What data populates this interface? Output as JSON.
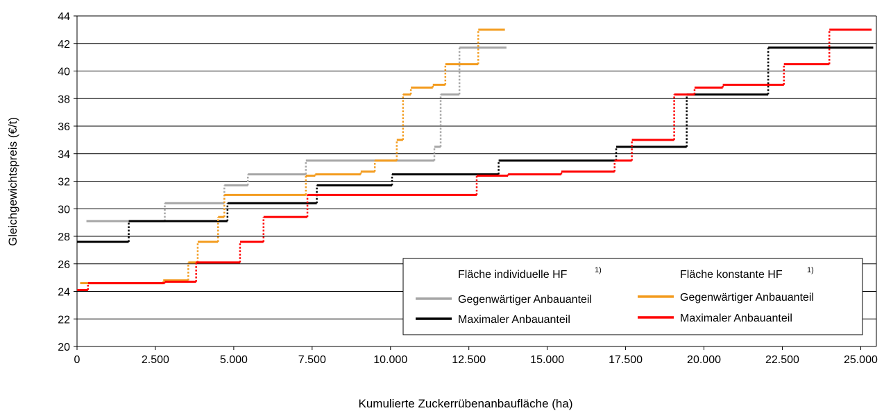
{
  "chart_data": {
    "type": "line",
    "step": true,
    "xlabel": "Kumulierte Zuckerrübenanbaufläche (ha)",
    "ylabel": "Gleichgewichtspreis (€/t)",
    "xlim": [
      0,
      25500
    ],
    "ylim": [
      20,
      44
    ],
    "x_ticks": [
      0,
      2500,
      5000,
      7500,
      10000,
      12500,
      15000,
      17500,
      20000,
      22500,
      25000
    ],
    "x_tick_labels": [
      "0",
      "2.500",
      "5.000",
      "7.500",
      "10.000",
      "12.500",
      "15.000",
      "17.500",
      "20.000",
      "22.500",
      "25.000"
    ],
    "y_ticks": [
      20,
      22,
      24,
      26,
      28,
      30,
      32,
      34,
      36,
      38,
      40,
      42,
      44
    ],
    "y_tick_labels": [
      "20",
      "22",
      "24",
      "26",
      "28",
      "30",
      "32",
      "34",
      "36",
      "38",
      "40",
      "42",
      "44"
    ],
    "grid": "horizontal",
    "legend": {
      "placement": "bottom-right",
      "group1_title": "Fläche individuelle HF",
      "group2_title": "Fläche konstante HF",
      "footnote_marker": "1)"
    },
    "series": [
      {
        "name": "Gegenwärtiger Anbauanteil",
        "group": "Fläche individuelle HF",
        "color": "#a6a6a6",
        "points": [
          [
            300,
            29.1
          ],
          [
            1650,
            29.1
          ],
          [
            2800,
            30.4
          ],
          [
            4700,
            31.7
          ],
          [
            5450,
            32.5
          ],
          [
            7300,
            33.5
          ],
          [
            11400,
            34.5
          ],
          [
            11600,
            38.3
          ],
          [
            12200,
            41.7
          ],
          [
            13700,
            41.7
          ]
        ]
      },
      {
        "name": "Maximaler Anbauanteil",
        "group": "Fläche individuelle HF",
        "color": "#000000",
        "points": [
          [
            0,
            27.6
          ],
          [
            1650,
            29.1
          ],
          [
            4800,
            30.4
          ],
          [
            7650,
            31.7
          ],
          [
            10050,
            32.5
          ],
          [
            13450,
            33.5
          ],
          [
            17200,
            34.5
          ],
          [
            19450,
            38.3
          ],
          [
            22050,
            41.7
          ],
          [
            25400,
            41.7
          ]
        ]
      },
      {
        "name": "Gegenwärtiger Anbauanteil",
        "group": "Fläche konstante HF",
        "color": "#f39c1f",
        "points": [
          [
            100,
            24.6
          ],
          [
            350,
            24.6
          ],
          [
            2750,
            24.8
          ],
          [
            3550,
            26.1
          ],
          [
            3850,
            27.6
          ],
          [
            4500,
            29.4
          ],
          [
            4700,
            31.0
          ],
          [
            7300,
            32.4
          ],
          [
            7600,
            32.5
          ],
          [
            9050,
            32.7
          ],
          [
            9500,
            33.5
          ],
          [
            10200,
            35.0
          ],
          [
            10400,
            38.3
          ],
          [
            10650,
            38.8
          ],
          [
            11350,
            39.0
          ],
          [
            11750,
            40.5
          ],
          [
            12800,
            43.0
          ],
          [
            13650,
            43.0
          ]
        ]
      },
      {
        "name": "Maximaler Anbauanteil",
        "group": "Fläche konstante HF",
        "color": "#ff0000",
        "points": [
          [
            0,
            24.1
          ],
          [
            350,
            24.6
          ],
          [
            2800,
            24.7
          ],
          [
            3800,
            26.1
          ],
          [
            5200,
            27.6
          ],
          [
            5950,
            29.4
          ],
          [
            7350,
            31.0
          ],
          [
            12750,
            32.4
          ],
          [
            13750,
            32.5
          ],
          [
            15450,
            32.7
          ],
          [
            17150,
            33.5
          ],
          [
            17700,
            35.0
          ],
          [
            19050,
            38.3
          ],
          [
            19700,
            38.8
          ],
          [
            20600,
            39.0
          ],
          [
            22550,
            40.5
          ],
          [
            24000,
            43.0
          ],
          [
            25350,
            43.0
          ]
        ]
      }
    ]
  }
}
